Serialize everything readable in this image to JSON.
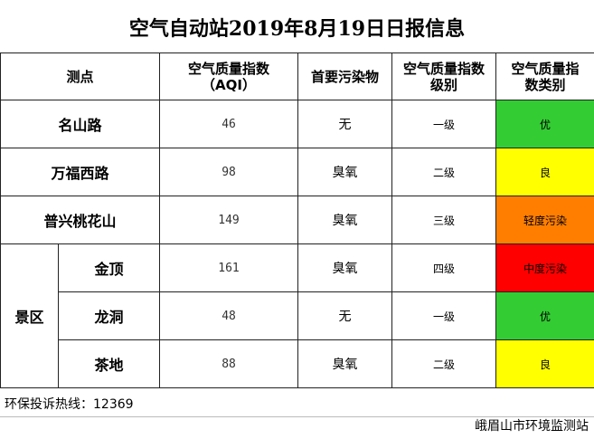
{
  "title": "空气自动站2019年8月19日日报信息",
  "headers": {
    "site": "测点",
    "aqi_line1": "空气质量指数",
    "aqi_line2": "（AQI）",
    "pollutant": "首要污染物",
    "grade_line1": "空气质量指数",
    "grade_line2": "级别",
    "cat_line1": "空气质量指",
    "cat_line2": "数类别"
  },
  "area_label": "景区",
  "rows": [
    {
      "site": "名山路",
      "aqi": "46",
      "pollutant": "无",
      "grade": "一级",
      "category": "优",
      "color": "#33cc33"
    },
    {
      "site": "万福西路",
      "aqi": "98",
      "pollutant": "臭氧",
      "grade": "二级",
      "category": "良",
      "color": "#ffff00"
    },
    {
      "site": "普兴桃花山",
      "aqi": "149",
      "pollutant": "臭氧",
      "grade": "三级",
      "category": "轻度污染",
      "color": "#ff7e00"
    },
    {
      "site": "金顶",
      "aqi": "161",
      "pollutant": "臭氧",
      "grade": "四级",
      "category": "中度污染",
      "color": "#ff0000"
    },
    {
      "site": "龙洞",
      "aqi": "48",
      "pollutant": "无",
      "grade": "一级",
      "category": "优",
      "color": "#33cc33"
    },
    {
      "site": "茶地",
      "aqi": "88",
      "pollutant": "臭氧",
      "grade": "二级",
      "category": "良",
      "color": "#ffff00"
    }
  ],
  "hotline": "环保投诉热线：12369",
  "issuer": "峨眉山市环境监测站"
}
